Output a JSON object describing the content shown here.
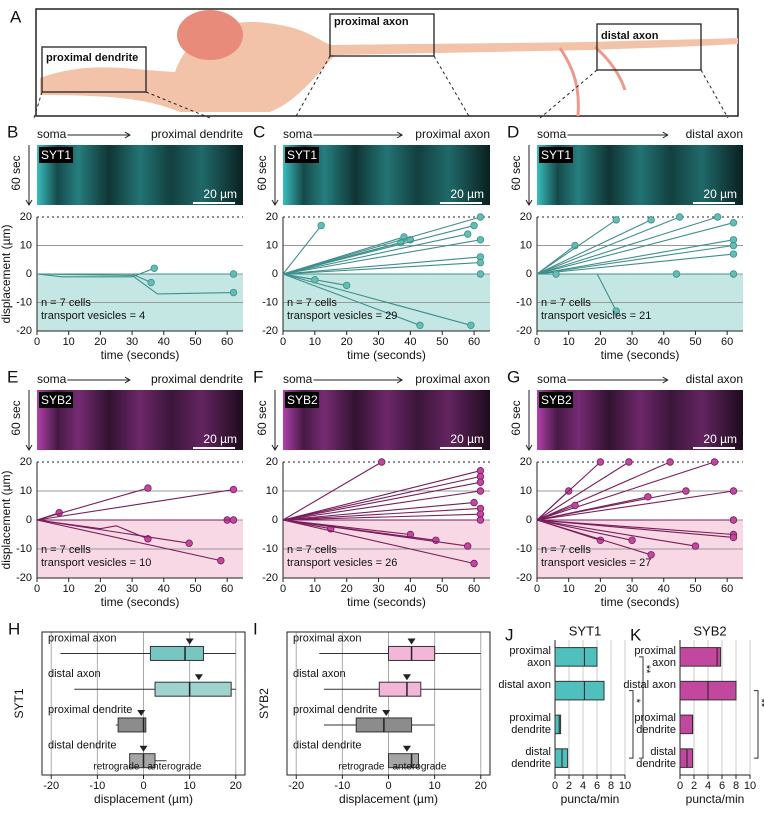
{
  "panel_a": {
    "label": "A",
    "boxes": [
      "proximal dendrite",
      "proximal axon",
      "distal axon"
    ]
  },
  "chart_data": [
    {
      "type": "line",
      "label": "B",
      "color": "#3f8f8c",
      "marker_color": "#63bdb4",
      "shade_color": "#c4e7e4",
      "kymo_color": "#3fd3d3",
      "kymograph": {
        "start": "soma",
        "end": "proximal dendrite",
        "protein": "SYT1",
        "scale": "20 µm",
        "time": "60 sec"
      },
      "ylabel": "displacement (µm)",
      "xlabel": "time (seconds)",
      "annotation": [
        "n = 7 cells",
        "transport vesicles = 4"
      ],
      "xlim": [
        0,
        65
      ],
      "xticks": [
        0,
        10,
        20,
        30,
        40,
        50,
        60
      ],
      "ylim": [
        -20,
        20
      ],
      "yticks": [
        -20,
        -10,
        0,
        10,
        20
      ],
      "series": [
        {
          "x": [
            0,
            8,
            30,
            37
          ],
          "values": [
            0,
            -1,
            -1,
            2
          ]
        },
        {
          "x": [
            0,
            30,
            36
          ],
          "values": [
            0,
            0,
            -3
          ]
        },
        {
          "x": [
            0,
            30,
            38,
            62
          ],
          "values": [
            0,
            -0.5,
            -7,
            -6.5
          ]
        },
        {
          "x": [
            0,
            40,
            62
          ],
          "values": [
            0,
            0,
            0
          ]
        }
      ]
    },
    {
      "type": "line",
      "label": "C",
      "color": "#3f8f8c",
      "marker_color": "#63bdb4",
      "shade_color": "#c4e7e4",
      "kymo_color": "#3fd3d3",
      "kymograph": {
        "start": "soma",
        "end": "proximal axon",
        "protein": "SYT1",
        "scale": "20 µm",
        "time": "60 sec"
      },
      "xlabel": "time (seconds)",
      "annotation": [
        "n = 7 cells",
        "transport vesicles = 29"
      ],
      "xlim": [
        0,
        65
      ],
      "xticks": [
        0,
        10,
        20,
        30,
        40,
        50,
        60
      ],
      "ylim": [
        -20,
        20
      ],
      "yticks": [
        -20,
        -10,
        0,
        10,
        20
      ],
      "series": [
        {
          "x": [
            0,
            12
          ],
          "values": [
            0,
            17
          ]
        },
        {
          "x": [
            0,
            38
          ],
          "values": [
            0,
            13
          ]
        },
        {
          "x": [
            0,
            40
          ],
          "values": [
            0,
            12
          ]
        },
        {
          "x": [
            0,
            37
          ],
          "values": [
            0,
            11
          ]
        },
        {
          "x": [
            0,
            58
          ],
          "values": [
            0,
            14
          ]
        },
        {
          "x": [
            0,
            62
          ],
          "values": [
            0,
            20
          ]
        },
        {
          "x": [
            0,
            60
          ],
          "values": [
            0,
            17
          ]
        },
        {
          "x": [
            0,
            62
          ],
          "values": [
            0,
            12
          ]
        },
        {
          "x": [
            0,
            62
          ],
          "values": [
            0,
            6
          ]
        },
        {
          "x": [
            0,
            62
          ],
          "values": [
            0,
            4
          ]
        },
        {
          "x": [
            0,
            62
          ],
          "values": [
            0,
            0
          ]
        },
        {
          "x": [
            0,
            20
          ],
          "values": [
            0,
            -4
          ]
        },
        {
          "x": [
            0,
            43
          ],
          "values": [
            0,
            -18
          ]
        },
        {
          "x": [
            0,
            59
          ],
          "values": [
            0,
            -18
          ]
        },
        {
          "x": [
            0,
            10
          ],
          "values": [
            0,
            -2
          ]
        }
      ]
    },
    {
      "type": "line",
      "label": "D",
      "color": "#3f8f8c",
      "marker_color": "#63bdb4",
      "shade_color": "#c4e7e4",
      "kymo_color": "#3fd3d3",
      "kymograph": {
        "start": "soma",
        "end": "distal axon",
        "protein": "SYT1",
        "scale": "20 µm",
        "time": "60 sec"
      },
      "xlabel": "time (seconds)",
      "annotation": [
        "n = 7 cells",
        "transport vesicles = 21"
      ],
      "xlim": [
        0,
        65
      ],
      "xticks": [
        0,
        10,
        20,
        30,
        40,
        50,
        60
      ],
      "ylim": [
        -20,
        20
      ],
      "yticks": [
        -20,
        -10,
        0,
        10,
        20
      ],
      "series": [
        {
          "x": [
            0,
            12
          ],
          "values": [
            0,
            10
          ]
        },
        {
          "x": [
            0,
            25
          ],
          "values": [
            0,
            19
          ]
        },
        {
          "x": [
            0,
            36
          ],
          "values": [
            0,
            19
          ]
        },
        {
          "x": [
            0,
            45
          ],
          "values": [
            0,
            20
          ]
        },
        {
          "x": [
            0,
            57
          ],
          "values": [
            0,
            20
          ]
        },
        {
          "x": [
            0,
            62
          ],
          "values": [
            0,
            18
          ]
        },
        {
          "x": [
            0,
            62
          ],
          "values": [
            0,
            12
          ]
        },
        {
          "x": [
            0,
            62
          ],
          "values": [
            0,
            10
          ]
        },
        {
          "x": [
            0,
            62
          ],
          "values": [
            0,
            7
          ]
        },
        {
          "x": [
            0,
            62
          ],
          "values": [
            0,
            0
          ]
        },
        {
          "x": [
            0,
            44
          ],
          "values": [
            0,
            0
          ]
        },
        {
          "x": [
            0,
            19,
            25
          ],
          "values": [
            0,
            0,
            -13
          ]
        },
        {
          "x": [
            0,
            6
          ],
          "values": [
            0,
            0
          ]
        }
      ]
    },
    {
      "type": "line",
      "label": "E",
      "color": "#7a1d5c",
      "marker_color": "#c2489f",
      "shade_color": "#f7d8e4",
      "kymo_color": "#c548c0",
      "kymograph": {
        "start": "soma",
        "end": "proximal dendrite",
        "protein": "SYB2",
        "scale": "20 µm",
        "time": "60 sec"
      },
      "ylabel": "displacement (µm)",
      "xlabel": "time (seconds)",
      "annotation": [
        "n = 7 cells",
        "transport vesicles = 10"
      ],
      "xlim": [
        0,
        65
      ],
      "xticks": [
        0,
        10,
        20,
        30,
        40,
        50,
        60
      ],
      "ylim": [
        -20,
        20
      ],
      "yticks": [
        -20,
        -10,
        0,
        10,
        20
      ],
      "series": [
        {
          "x": [
            0,
            7
          ],
          "values": [
            0,
            2.5
          ]
        },
        {
          "x": [
            0,
            35
          ],
          "values": [
            0,
            11
          ]
        },
        {
          "x": [
            0,
            62
          ],
          "values": [
            0,
            10.5
          ]
        },
        {
          "x": [
            0,
            20,
            25,
            35
          ],
          "values": [
            0,
            -3,
            -2,
            -6.5
          ]
        },
        {
          "x": [
            0,
            48
          ],
          "values": [
            0,
            -8
          ]
        },
        {
          "x": [
            0,
            58
          ],
          "values": [
            0,
            -14
          ]
        },
        {
          "x": [
            0,
            60
          ],
          "values": [
            0,
            0
          ]
        },
        {
          "x": [
            0,
            62
          ],
          "values": [
            0,
            0
          ]
        }
      ]
    },
    {
      "type": "line",
      "label": "F",
      "color": "#7a1d5c",
      "marker_color": "#c2489f",
      "shade_color": "#f7d8e4",
      "kymo_color": "#c548c0",
      "kymograph": {
        "start": "soma",
        "end": "proximal axon",
        "protein": "SYB2",
        "scale": "20 µm",
        "time": "60 sec"
      },
      "xlabel": "time (seconds)",
      "annotation": [
        "n = 7 cells",
        "transport vesicles = 26"
      ],
      "xlim": [
        0,
        65
      ],
      "xticks": [
        0,
        10,
        20,
        30,
        40,
        50,
        60
      ],
      "ylim": [
        -20,
        20
      ],
      "yticks": [
        -20,
        -10,
        0,
        10,
        20
      ],
      "series": [
        {
          "x": [
            0,
            31
          ],
          "values": [
            0,
            20
          ]
        },
        {
          "x": [
            0,
            62
          ],
          "values": [
            0,
            17
          ]
        },
        {
          "x": [
            0,
            62
          ],
          "values": [
            0,
            15
          ]
        },
        {
          "x": [
            0,
            62
          ],
          "values": [
            0,
            13
          ]
        },
        {
          "x": [
            0,
            62
          ],
          "values": [
            0,
            10
          ]
        },
        {
          "x": [
            0,
            60
          ],
          "values": [
            0,
            6
          ]
        },
        {
          "x": [
            0,
            62
          ],
          "values": [
            0,
            4
          ]
        },
        {
          "x": [
            0,
            62
          ],
          "values": [
            0,
            2
          ]
        },
        {
          "x": [
            0,
            62
          ],
          "values": [
            0,
            0
          ]
        },
        {
          "x": [
            0,
            15
          ],
          "values": [
            0,
            -3
          ]
        },
        {
          "x": [
            0,
            40
          ],
          "values": [
            0,
            -5
          ]
        },
        {
          "x": [
            0,
            48
          ],
          "values": [
            0,
            -7
          ]
        },
        {
          "x": [
            0,
            60
          ],
          "values": [
            0,
            -15
          ]
        },
        {
          "x": [
            0,
            58
          ],
          "values": [
            0,
            -9
          ]
        }
      ]
    },
    {
      "type": "line",
      "label": "G",
      "color": "#7a1d5c",
      "marker_color": "#c2489f",
      "shade_color": "#f7d8e4",
      "kymo_color": "#c548c0",
      "kymograph": {
        "start": "soma",
        "end": "distal axon",
        "protein": "SYB2",
        "scale": "20 µm",
        "time": "60 sec"
      },
      "xlabel": "time (seconds)",
      "annotation": [
        "n = 7 cells",
        "transport vesicles = 27"
      ],
      "xlim": [
        0,
        65
      ],
      "xticks": [
        0,
        10,
        20,
        30,
        40,
        50,
        60
      ],
      "ylim": [
        -20,
        20
      ],
      "yticks": [
        -20,
        -10,
        0,
        10,
        20
      ],
      "series": [
        {
          "x": [
            0,
            10
          ],
          "values": [
            0,
            10
          ]
        },
        {
          "x": [
            0,
            20
          ],
          "values": [
            0,
            20
          ]
        },
        {
          "x": [
            0,
            29
          ],
          "values": [
            0,
            20
          ]
        },
        {
          "x": [
            0,
            42
          ],
          "values": [
            0,
            20
          ]
        },
        {
          "x": [
            0,
            56
          ],
          "values": [
            0,
            20
          ]
        },
        {
          "x": [
            0,
            62
          ],
          "values": [
            0,
            10
          ]
        },
        {
          "x": [
            0,
            47
          ],
          "values": [
            0,
            10
          ]
        },
        {
          "x": [
            0,
            35
          ],
          "values": [
            0,
            8
          ]
        },
        {
          "x": [
            0,
            12
          ],
          "values": [
            0,
            5
          ]
        },
        {
          "x": [
            0,
            62
          ],
          "values": [
            0,
            0
          ]
        },
        {
          "x": [
            0,
            62
          ],
          "values": [
            0,
            -5
          ]
        },
        {
          "x": [
            0,
            30
          ],
          "values": [
            0,
            -7
          ]
        },
        {
          "x": [
            0,
            50
          ],
          "values": [
            0,
            -9
          ]
        },
        {
          "x": [
            0,
            20
          ],
          "values": [
            0,
            -7
          ]
        },
        {
          "x": [
            0,
            36
          ],
          "values": [
            0,
            -12
          ]
        },
        {
          "x": [
            0,
            62
          ],
          "values": [
            0,
            -6
          ]
        }
      ]
    },
    {
      "type": "box",
      "label": "H",
      "ylabel": "SYT1",
      "xlabel": "displacement (µm)",
      "annotation": [
        "retrograde",
        "anterograde"
      ],
      "categories": [
        "proximal axon",
        "distal axon",
        "proximal dendrite",
        "distal dendrite"
      ],
      "colors": [
        "#78c6c1",
        "#9fd3cf",
        "#8c8c8c",
        "#a5a5a5"
      ],
      "min": [
        -18,
        -15,
        -6,
        -3
      ],
      "q1": [
        1.5,
        2.5,
        -5.5,
        -3
      ],
      "median": [
        9,
        10,
        0,
        0
      ],
      "q3": [
        13,
        19,
        0.5,
        2.5
      ],
      "max": [
        20,
        20,
        0.5,
        5
      ],
      "mean": [
        10,
        12,
        -0.5,
        0
      ],
      "xlim": [
        -22,
        22
      ],
      "xticks": [
        -20,
        -10,
        0,
        10,
        20
      ]
    },
    {
      "type": "box",
      "label": "I",
      "ylabel": "SYB2",
      "xlabel": "displacement (µm)",
      "annotation": [
        "retrograde",
        "anterograde"
      ],
      "categories": [
        "proximal axon",
        "distal axon",
        "proximal dendrite",
        "distal dendrite"
      ],
      "colors": [
        "#f3b6d8",
        "#f3b6d8",
        "#8c8c8c",
        "#a5a5a5"
      ],
      "min": [
        -15,
        -14,
        -14,
        0
      ],
      "q1": [
        0,
        -2,
        -7,
        0
      ],
      "median": [
        5,
        4,
        -1,
        5
      ],
      "q3": [
        10,
        7,
        5,
        6.5
      ],
      "max": [
        20,
        20,
        10,
        6.5
      ],
      "mean": [
        5,
        4,
        -0.5,
        4
      ],
      "xlim": [
        -22,
        22
      ],
      "xticks": [
        -20,
        -10,
        0,
        10,
        20
      ]
    },
    {
      "type": "hbar",
      "label": "J",
      "title": "SYT1",
      "xlabel": "puncta/min",
      "color": "#4fc0bd",
      "categories": [
        "proximal axon",
        "distal axon",
        "proximal dendrite",
        "distal dendrite"
      ],
      "values": [
        6,
        7,
        0.8,
        1.8
      ],
      "medians": [
        4.2,
        4.2,
        0.6,
        1
      ],
      "significance": [
        "**",
        "*"
      ],
      "xlim": [
        0,
        10
      ],
      "xticks": [
        0,
        2,
        4,
        6,
        8,
        10
      ]
    },
    {
      "type": "hbar",
      "label": "K",
      "title": "SYB2",
      "xlabel": "puncta/min",
      "color": "#c2489f",
      "categories": [
        "proximal axon",
        "distal axon",
        "proximal dendrite",
        "distal dendrite"
      ],
      "values": [
        5.8,
        8,
        1.8,
        1.8
      ],
      "medians": [
        5.3,
        4,
        1.8,
        1
      ],
      "significance": [
        "*",
        "**"
      ],
      "xlim": [
        0,
        10
      ],
      "xticks": [
        0,
        2,
        4,
        6,
        8,
        10
      ]
    }
  ]
}
